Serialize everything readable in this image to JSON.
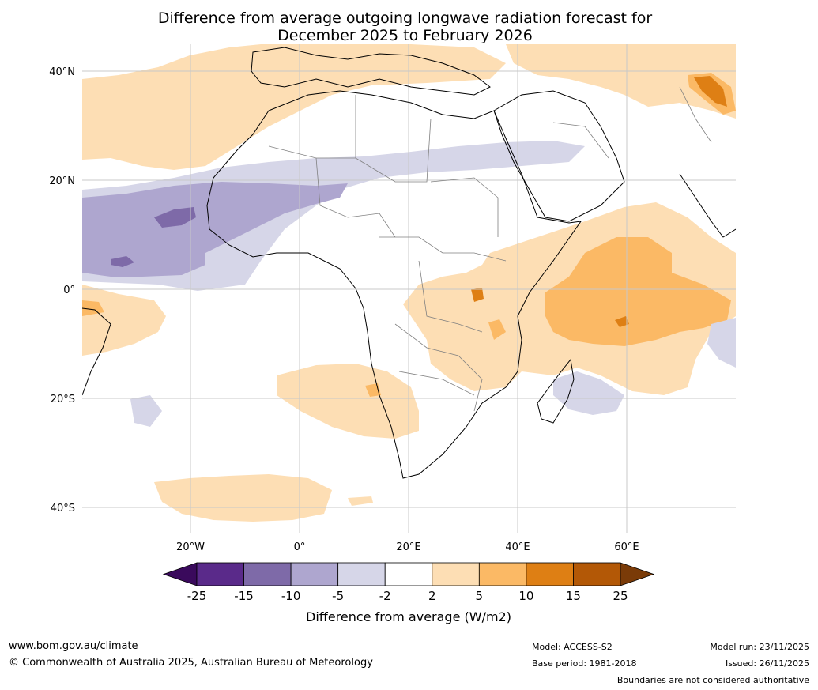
{
  "title": {
    "line1": "Difference from average outgoing longwave radiation forecast for",
    "line2": "December 2025 to February 2026"
  },
  "axes": {
    "lat_labels": [
      "40°N",
      "20°N",
      "0°",
      "20°S",
      "40°S"
    ],
    "lon_labels": [
      "20°W",
      "0°",
      "20°E",
      "40°E",
      "60°E"
    ]
  },
  "legend": {
    "title": "Difference from average (W/m2)",
    "tick_labels": [
      "-25",
      "-15",
      "-10",
      "-5",
      "-2",
      "2",
      "5",
      "10",
      "15",
      "25"
    ],
    "colors": [
      "#3a0a5c",
      "#5a2a8a",
      "#7e6aa8",
      "#aea6cf",
      "#d6d6e8",
      "#ffffff",
      "#fddeb4",
      "#fbb965",
      "#de7f14",
      "#b35806",
      "#7a3b08"
    ]
  },
  "footer": {
    "website": "www.bom.gov.au/climate",
    "copyright": "© Commonwealth of Australia 2025, Australian Bureau of Meteorology",
    "model": "Model: ACCESS-S2",
    "base_period": "Base period: 1981-2018",
    "model_run": "Model run: 23/11/2025",
    "issued": "Issued: 26/11/2025",
    "disclaimer": "Boundaries are not considered authoritative"
  }
}
